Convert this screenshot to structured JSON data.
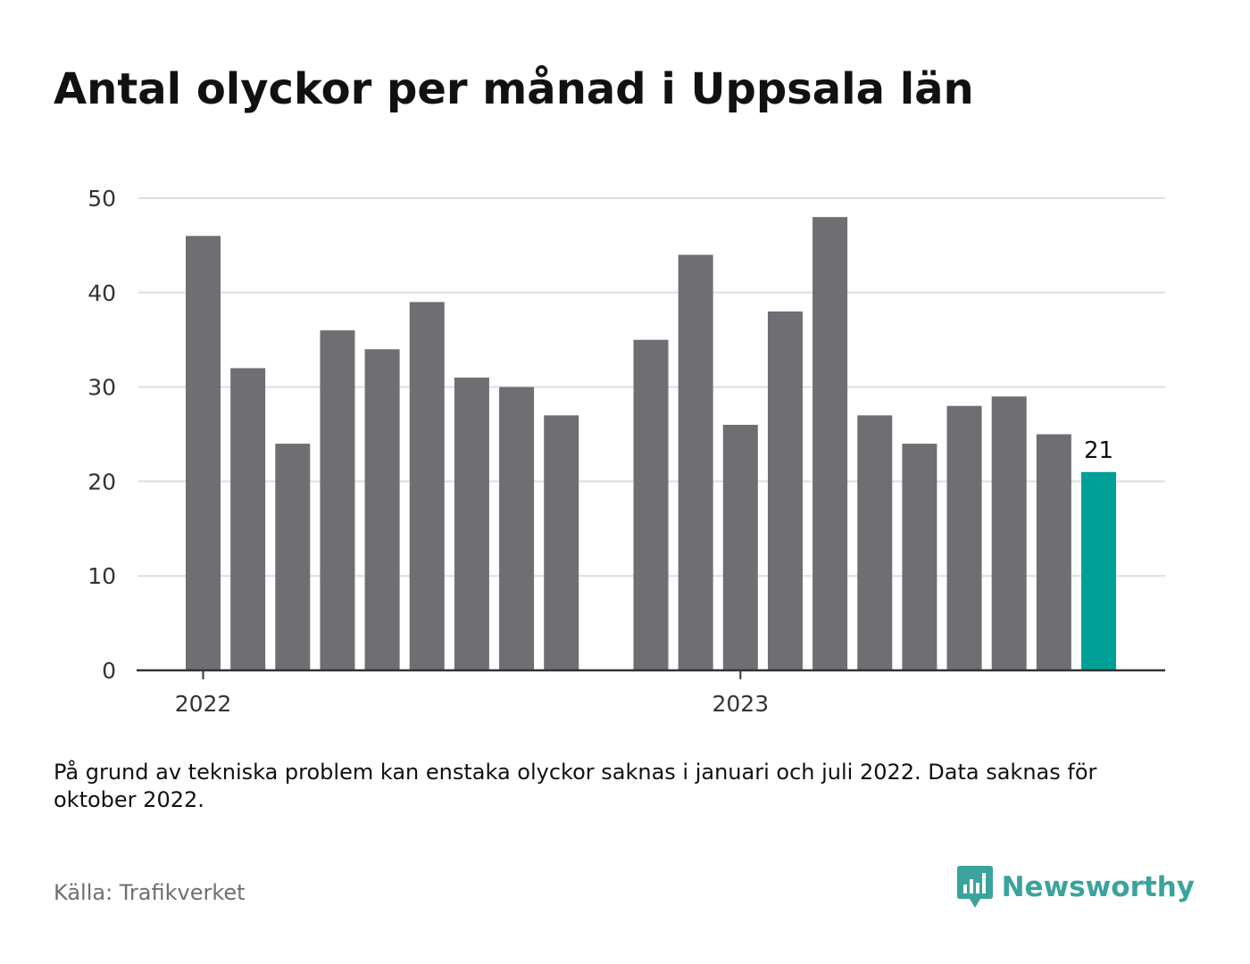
{
  "chart_data": {
    "type": "bar",
    "title": "Antal olyckor per månad i Uppsala län",
    "xlabel": "",
    "ylabel": "",
    "ylim": [
      0,
      50
    ],
    "yticks": [
      "0",
      "10",
      "20",
      "30",
      "40",
      "50"
    ],
    "xticks": [
      "2022",
      "2023"
    ],
    "grid": true,
    "series": [
      {
        "values": [
          46,
          32,
          24,
          36,
          34,
          39,
          31,
          30,
          27,
          null,
          35,
          44,
          26,
          38,
          48,
          27,
          24,
          28,
          29,
          25,
          21
        ]
      }
    ],
    "highlight": {
      "index": 20,
      "label": "21"
    },
    "colors": {
      "bar": "#6e6e73",
      "highlight": "#00a096",
      "grid": "#dddddd",
      "axis": "#333333"
    }
  },
  "note": "På grund av tekniska problem kan enstaka olyckor saknas i januari och juli 2022. Data saknas för oktober 2022.",
  "source": "Källa: Trafikverket",
  "brand": {
    "name": "Newsworthy",
    "icon": "newsworthy-logo-icon",
    "color": "#3aa39b"
  }
}
